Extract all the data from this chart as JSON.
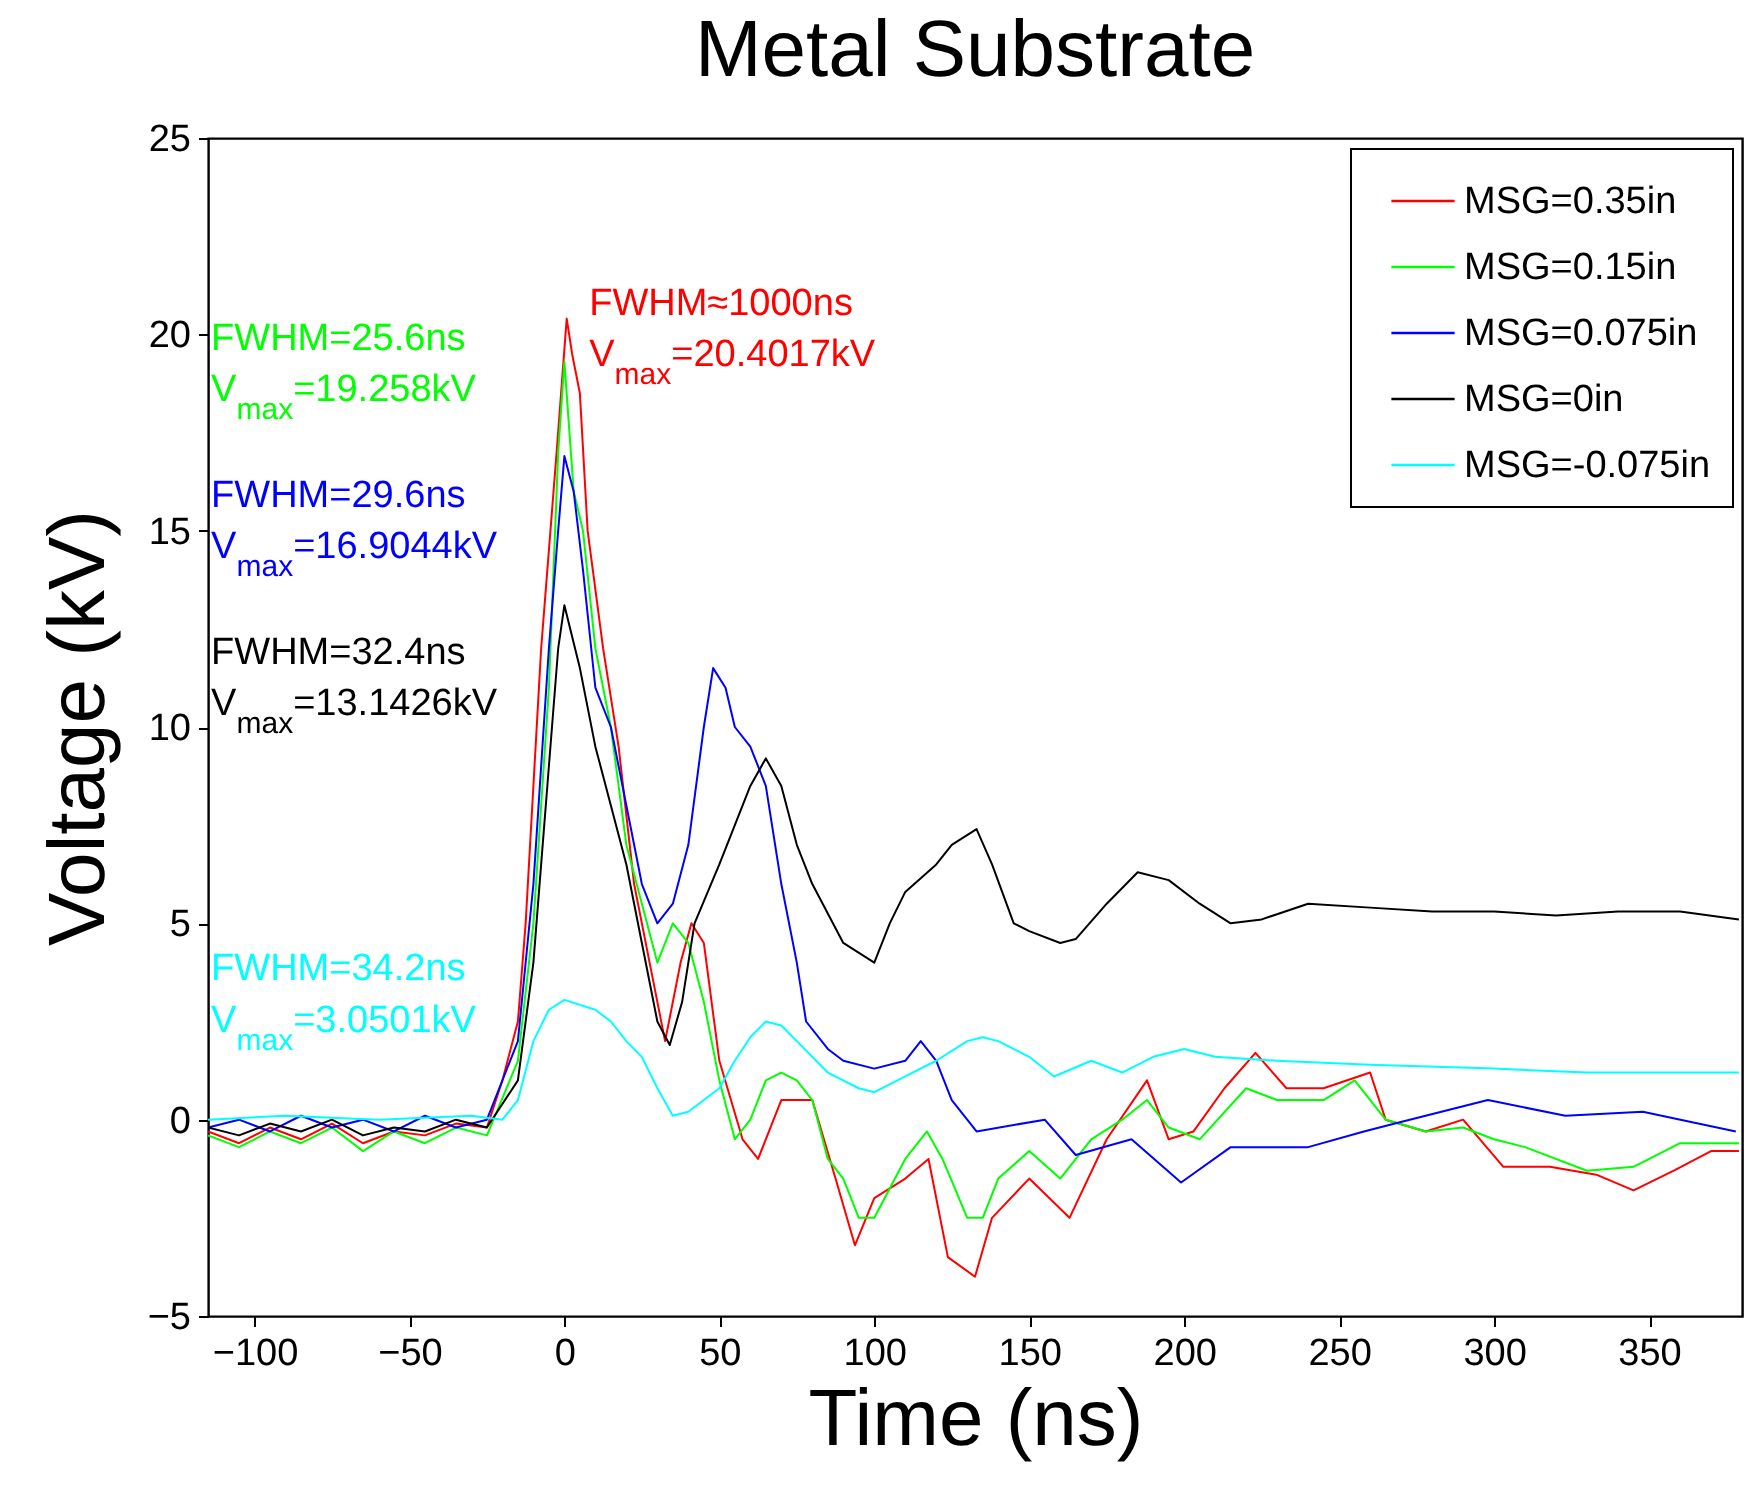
{
  "chart_data": {
    "type": "line",
    "title": "Metal Substrate",
    "xlabel": "Time (ns)",
    "ylabel": "Voltage (kV)",
    "xlim": [
      -115,
      380
    ],
    "xticks": [
      -100,
      -50,
      0,
      50,
      100,
      150,
      200,
      250,
      300,
      350
    ],
    "ylim": [
      -5,
      25
    ],
    "yticks": [
      -5,
      0,
      5,
      10,
      15,
      20,
      25
    ],
    "grid": false,
    "legend": "top right",
    "line_style": "solid",
    "marker": "none",
    "series": [
      {
        "name": "MSG=0.35in",
        "color": "#ff0000",
        "x": [
          -115,
          -105,
          -95,
          -85,
          -75,
          -65,
          -55,
          -45,
          -35,
          -25,
          -20,
          -15,
          -12.5,
          -7.5,
          -2.5,
          0.75,
          2.5,
          5,
          7.5,
          12.5,
          17.5,
          22.5,
          27.5,
          32.5,
          37.5,
          41,
          45,
          50,
          57.5,
          62.5,
          70,
          80,
          87.5,
          93.75,
          100,
          110,
          117.5,
          123.75,
          132.5,
          138,
          150,
          163,
          175,
          188,
          195,
          203,
          213,
          223,
          233,
          245,
          260,
          265,
          278,
          290,
          303,
          318,
          333,
          345,
          358,
          370,
          379
        ],
        "values": [
          -0.3,
          -0.6,
          -0.2,
          -0.5,
          -0.1,
          -0.6,
          -0.3,
          -0.4,
          -0.1,
          -0.2,
          1.0,
          2.5,
          5,
          12,
          17,
          20.4,
          19.5,
          18.5,
          15,
          12,
          9.5,
          6,
          4,
          2.0,
          4,
          5,
          4.5,
          1.5,
          -0.5,
          -1.0,
          0.5,
          0.5,
          -1.5,
          -3.2,
          -2,
          -1.5,
          -1,
          -3.5,
          -4.0,
          -2.5,
          -1.5,
          -2.5,
          -0.5,
          1.0,
          -0.5,
          -0.3,
          0.8,
          1.7,
          0.8,
          0.8,
          1.2,
          0,
          -0.3,
          0,
          -1.2,
          -1.2,
          -1.4,
          -1.8,
          -1.3,
          -0.8,
          -0.8
        ]
      },
      {
        "name": "MSG=0.15in",
        "color": "#00ff00",
        "x": [
          -115,
          -105,
          -95,
          -85,
          -75,
          -65,
          -55,
          -45,
          -35,
          -25,
          -15,
          -10,
          -5,
          -2,
          0,
          3,
          6,
          10,
          15,
          20,
          25,
          30,
          35,
          40,
          45,
          50,
          55,
          60,
          65,
          70,
          75,
          80,
          85,
          90,
          95,
          100,
          110,
          117,
          122,
          130,
          135,
          140,
          150,
          160,
          170,
          180,
          188,
          195,
          205,
          220,
          230,
          245,
          255,
          265,
          278,
          290,
          300,
          310,
          330,
          345,
          360,
          379
        ],
        "values": [
          -0.4,
          -0.7,
          -0.3,
          -0.6,
          -0.2,
          -0.8,
          -0.3,
          -0.6,
          -0.2,
          -0.4,
          1.5,
          5,
          11,
          17,
          19.3,
          16,
          15,
          12,
          10,
          7,
          5.5,
          4,
          5,
          4.5,
          3,
          1,
          -0.5,
          0,
          1,
          1.2,
          1.0,
          0.5,
          -1,
          -1.5,
          -2.5,
          -2.5,
          -1,
          -0.3,
          -1.0,
          -2.5,
          -2.5,
          -1.5,
          -0.8,
          -1.5,
          -0.5,
          0,
          0.5,
          -0.2,
          -0.5,
          0.8,
          0.5,
          0.5,
          1.0,
          0,
          -0.3,
          -0.2,
          -0.5,
          -0.7,
          -1.3,
          -1.2,
          -0.6,
          -0.6
        ]
      },
      {
        "name": "MSG=0.075in",
        "color": "#0000ff",
        "x": [
          -115,
          -105,
          -95,
          -85,
          -75,
          -65,
          -55,
          -45,
          -35,
          -25,
          -15,
          -10,
          -5,
          -2,
          0,
          3,
          6,
          10,
          15,
          20,
          25,
          30,
          35,
          40,
          45,
          48,
          52,
          55,
          60,
          65,
          70,
          75,
          78,
          85,
          90,
          100,
          110,
          115,
          120,
          125,
          133,
          155,
          165,
          183,
          199,
          215,
          240,
          258,
          268,
          298,
          323,
          348,
          378
        ],
        "values": [
          -0.2,
          0,
          -0.3,
          0.1,
          -0.2,
          0,
          -0.3,
          0.1,
          -0.2,
          0,
          2,
          6,
          12,
          15,
          16.9,
          16,
          14,
          11,
          10,
          8,
          6,
          5,
          5.5,
          7,
          10,
          11.5,
          11,
          10,
          9.5,
          8.5,
          6,
          4,
          2.5,
          1.8,
          1.5,
          1.3,
          1.5,
          2.0,
          1.5,
          0.5,
          -0.3,
          0,
          -0.9,
          -0.5,
          -1.6,
          -0.7,
          -0.7,
          -0.3,
          -0.1,
          0.5,
          0.1,
          0.2,
          -0.3
        ]
      },
      {
        "name": "MSG=0in",
        "color": "#000000",
        "x": [
          -115,
          -105,
          -95,
          -85,
          -75,
          -65,
          -55,
          -45,
          -35,
          -25,
          -15,
          -10,
          -5,
          -2,
          0,
          5,
          10,
          15,
          20,
          25,
          30,
          34,
          38,
          42,
          50,
          55,
          60,
          65,
          70,
          75,
          80,
          90,
          100,
          105,
          110,
          120,
          125,
          133,
          138,
          145,
          150,
          160,
          165,
          175,
          185,
          195,
          205,
          215,
          225,
          240,
          260,
          280,
          300,
          320,
          340,
          360,
          379
        ],
        "values": [
          -0.2,
          -0.4,
          -0.1,
          -0.3,
          0,
          -0.4,
          -0.2,
          -0.3,
          0,
          -0.2,
          1,
          4,
          9,
          12,
          13.1,
          11.5,
          9.5,
          8,
          6.5,
          4.5,
          2.5,
          1.9,
          3,
          5,
          6.5,
          7.5,
          8.5,
          9.2,
          8.5,
          7,
          6,
          4.5,
          4.0,
          5,
          5.8,
          6.5,
          7,
          7.4,
          6.5,
          5.0,
          4.8,
          4.5,
          4.6,
          5.5,
          6.3,
          6.1,
          5.5,
          5.0,
          5.1,
          5.5,
          5.4,
          5.3,
          5.3,
          5.2,
          5.3,
          5.3,
          5.1
        ]
      },
      {
        "name": "MSG=-0.075in",
        "color": "#00ffff",
        "x": [
          -115,
          -90,
          -60,
          -30,
          -20,
          -15,
          -10,
          -5,
          0,
          10,
          15,
          20,
          25,
          30,
          35,
          40,
          50,
          55,
          60,
          65,
          70,
          75,
          85,
          95,
          100,
          110,
          120,
          130,
          135,
          140,
          150,
          158,
          170,
          180,
          190,
          200,
          210,
          230,
          260,
          300,
          330,
          379
        ],
        "values": [
          0,
          0.1,
          0,
          0.1,
          0,
          0.5,
          2,
          2.8,
          3.05,
          2.8,
          2.5,
          2.0,
          1.6,
          0.8,
          0.1,
          0.2,
          0.8,
          1.5,
          2.1,
          2.5,
          2.4,
          2.0,
          1.2,
          0.8,
          0.7,
          1.1,
          1.5,
          2.0,
          2.1,
          2.0,
          1.6,
          1.1,
          1.5,
          1.2,
          1.6,
          1.8,
          1.6,
          1.5,
          1.4,
          1.3,
          1.2,
          1.2
        ]
      }
    ],
    "annotations": [
      "FWHM≈1000ns",
      "V$_{max}$=20.4017kV",
      "FWHM=25.6ns",
      "V$_{max}$=19.258kV",
      "FWHM=29.6ns",
      "V$_{max}$=16.9044kV",
      "FWHM=32.4ns",
      "V$_{max}$=13.1426kV",
      "FWHM=34.2ns",
      "V$_{max}$=3.0501kV"
    ]
  }
}
